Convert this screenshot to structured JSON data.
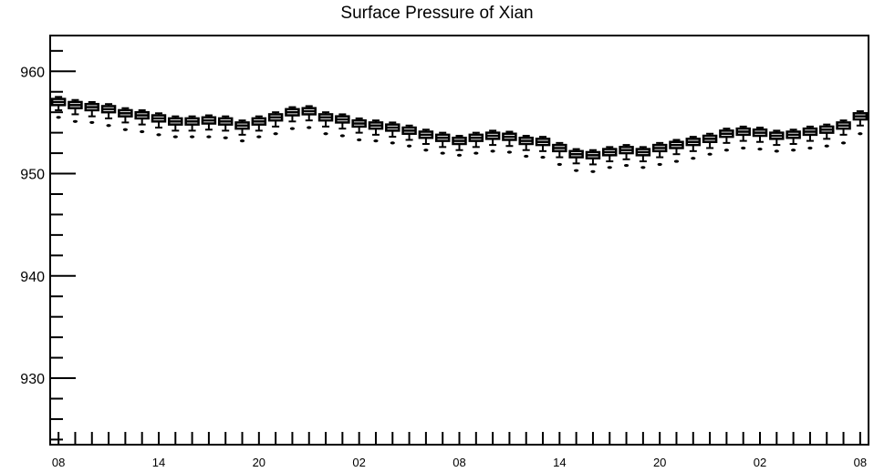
{
  "chart_data": {
    "type": "boxplot",
    "title": "Surface Pressure of Xian",
    "xlabel": "",
    "ylabel": "",
    "ylim": [
      923.5,
      963.5
    ],
    "xlim": [
      -0.5,
      48.5
    ],
    "y_ticks": [
      930,
      940,
      950,
      960
    ],
    "y_tick_labels": [
      "930",
      "940",
      "950",
      "960"
    ],
    "x_ticks": [
      0,
      6,
      12,
      18,
      24,
      30,
      36,
      42,
      48
    ],
    "x_tick_labels": [
      "08",
      "14",
      "20",
      "02",
      "08",
      "14",
      "20",
      "02",
      "08"
    ],
    "grid": false,
    "legend": "none",
    "colors": {
      "stroke": "#000000",
      "background": "#ffffff"
    },
    "boxes": [
      {
        "x": 0,
        "q1": 956.7,
        "median": 957.0,
        "q3": 957.3,
        "low": 956.2,
        "high": 957.5,
        "outlier": 955.5
      },
      {
        "x": 1,
        "q1": 956.4,
        "median": 956.7,
        "q3": 957.0,
        "low": 955.8,
        "high": 957.2,
        "outlier": 955.1
      },
      {
        "x": 2,
        "q1": 956.2,
        "median": 956.5,
        "q3": 956.8,
        "low": 955.6,
        "high": 957.0,
        "outlier": 955.0
      },
      {
        "x": 3,
        "q1": 956.0,
        "median": 956.3,
        "q3": 956.6,
        "low": 955.4,
        "high": 956.8,
        "outlier": 954.7
      },
      {
        "x": 4,
        "q1": 955.6,
        "median": 955.9,
        "q3": 956.2,
        "low": 955.0,
        "high": 956.4,
        "outlier": 954.3
      },
      {
        "x": 5,
        "q1": 955.4,
        "median": 955.7,
        "q3": 956.0,
        "low": 954.8,
        "high": 956.2,
        "outlier": 954.1
      },
      {
        "x": 6,
        "q1": 955.1,
        "median": 955.4,
        "q3": 955.7,
        "low": 954.5,
        "high": 955.9,
        "outlier": 953.8
      },
      {
        "x": 7,
        "q1": 954.8,
        "median": 955.1,
        "q3": 955.4,
        "low": 954.2,
        "high": 955.6,
        "outlier": 953.6
      },
      {
        "x": 8,
        "q1": 954.8,
        "median": 955.1,
        "q3": 955.4,
        "low": 954.2,
        "high": 955.6,
        "outlier": 953.6
      },
      {
        "x": 9,
        "q1": 954.9,
        "median": 955.2,
        "q3": 955.5,
        "low": 954.3,
        "high": 955.7,
        "outlier": 953.6
      },
      {
        "x": 10,
        "q1": 954.8,
        "median": 955.1,
        "q3": 955.4,
        "low": 954.2,
        "high": 955.6,
        "outlier": 953.5
      },
      {
        "x": 11,
        "q1": 954.4,
        "median": 954.7,
        "q3": 955.0,
        "low": 953.8,
        "high": 955.2,
        "outlier": 953.2
      },
      {
        "x": 12,
        "q1": 954.8,
        "median": 955.1,
        "q3": 955.4,
        "low": 954.2,
        "high": 955.6,
        "outlier": 953.6
      },
      {
        "x": 13,
        "q1": 955.2,
        "median": 955.5,
        "q3": 955.8,
        "low": 954.6,
        "high": 956.0,
        "outlier": 953.9
      },
      {
        "x": 14,
        "q1": 955.7,
        "median": 956.0,
        "q3": 956.3,
        "low": 955.1,
        "high": 956.5,
        "outlier": 954.4
      },
      {
        "x": 15,
        "q1": 955.8,
        "median": 956.1,
        "q3": 956.4,
        "low": 955.2,
        "high": 956.6,
        "outlier": 954.5
      },
      {
        "x": 16,
        "q1": 955.2,
        "median": 955.5,
        "q3": 955.8,
        "low": 954.6,
        "high": 956.0,
        "outlier": 953.9
      },
      {
        "x": 17,
        "q1": 955.0,
        "median": 955.3,
        "q3": 955.6,
        "low": 954.4,
        "high": 955.8,
        "outlier": 953.7
      },
      {
        "x": 18,
        "q1": 954.6,
        "median": 954.9,
        "q3": 955.2,
        "low": 954.0,
        "high": 955.4,
        "outlier": 953.3
      },
      {
        "x": 19,
        "q1": 954.4,
        "median": 954.7,
        "q3": 955.0,
        "low": 953.8,
        "high": 955.2,
        "outlier": 953.2
      },
      {
        "x": 20,
        "q1": 954.2,
        "median": 954.5,
        "q3": 954.8,
        "low": 953.6,
        "high": 955.0,
        "outlier": 953.0
      },
      {
        "x": 21,
        "q1": 953.9,
        "median": 954.2,
        "q3": 954.5,
        "low": 953.3,
        "high": 954.7,
        "outlier": 952.7
      },
      {
        "x": 22,
        "q1": 953.5,
        "median": 953.8,
        "q3": 954.1,
        "low": 952.9,
        "high": 954.3,
        "outlier": 952.3
      },
      {
        "x": 23,
        "q1": 953.2,
        "median": 953.5,
        "q3": 953.8,
        "low": 952.6,
        "high": 954.0,
        "outlier": 952.0
      },
      {
        "x": 24,
        "q1": 952.9,
        "median": 953.2,
        "q3": 953.5,
        "low": 952.3,
        "high": 953.7,
        "outlier": 951.8
      },
      {
        "x": 25,
        "q1": 953.2,
        "median": 953.5,
        "q3": 953.8,
        "low": 952.6,
        "high": 954.0,
        "outlier": 952.0
      },
      {
        "x": 26,
        "q1": 953.4,
        "median": 953.7,
        "q3": 954.0,
        "low": 952.8,
        "high": 954.2,
        "outlier": 952.2
      },
      {
        "x": 27,
        "q1": 953.3,
        "median": 953.6,
        "q3": 953.9,
        "low": 952.7,
        "high": 954.1,
        "outlier": 952.1
      },
      {
        "x": 28,
        "q1": 952.9,
        "median": 953.2,
        "q3": 953.5,
        "low": 952.3,
        "high": 953.7,
        "outlier": 951.7
      },
      {
        "x": 29,
        "q1": 952.8,
        "median": 953.1,
        "q3": 953.4,
        "low": 952.2,
        "high": 953.6,
        "outlier": 951.6
      },
      {
        "x": 30,
        "q1": 952.2,
        "median": 952.5,
        "q3": 952.8,
        "low": 951.6,
        "high": 953.0,
        "outlier": 950.9
      },
      {
        "x": 31,
        "q1": 951.6,
        "median": 951.9,
        "q3": 952.2,
        "low": 951.0,
        "high": 952.4,
        "outlier": 950.3
      },
      {
        "x": 32,
        "q1": 951.5,
        "median": 951.8,
        "q3": 952.1,
        "low": 950.9,
        "high": 952.3,
        "outlier": 950.2
      },
      {
        "x": 33,
        "q1": 951.8,
        "median": 952.1,
        "q3": 952.4,
        "low": 951.2,
        "high": 952.6,
        "outlier": 950.6
      },
      {
        "x": 34,
        "q1": 952.0,
        "median": 952.3,
        "q3": 952.6,
        "low": 951.4,
        "high": 952.8,
        "outlier": 950.8
      },
      {
        "x": 35,
        "q1": 951.8,
        "median": 952.1,
        "q3": 952.4,
        "low": 951.2,
        "high": 952.6,
        "outlier": 950.6
      },
      {
        "x": 36,
        "q1": 952.2,
        "median": 952.5,
        "q3": 952.8,
        "low": 951.6,
        "high": 953.0,
        "outlier": 950.9
      },
      {
        "x": 37,
        "q1": 952.5,
        "median": 952.8,
        "q3": 953.1,
        "low": 951.9,
        "high": 953.3,
        "outlier": 951.2
      },
      {
        "x": 38,
        "q1": 952.8,
        "median": 953.1,
        "q3": 953.4,
        "low": 952.2,
        "high": 953.6,
        "outlier": 951.5
      },
      {
        "x": 39,
        "q1": 953.1,
        "median": 953.4,
        "q3": 953.7,
        "low": 952.5,
        "high": 953.9,
        "outlier": 951.9
      },
      {
        "x": 40,
        "q1": 953.6,
        "median": 953.9,
        "q3": 954.2,
        "low": 953.0,
        "high": 954.4,
        "outlier": 952.3
      },
      {
        "x": 41,
        "q1": 953.8,
        "median": 954.1,
        "q3": 954.4,
        "low": 953.2,
        "high": 954.6,
        "outlier": 952.5
      },
      {
        "x": 42,
        "q1": 953.7,
        "median": 954.0,
        "q3": 954.3,
        "low": 953.1,
        "high": 954.5,
        "outlier": 952.4
      },
      {
        "x": 43,
        "q1": 953.4,
        "median": 953.7,
        "q3": 954.0,
        "low": 952.8,
        "high": 954.2,
        "outlier": 952.2
      },
      {
        "x": 44,
        "q1": 953.5,
        "median": 953.8,
        "q3": 954.1,
        "low": 952.9,
        "high": 954.3,
        "outlier": 952.3
      },
      {
        "x": 45,
        "q1": 953.8,
        "median": 954.1,
        "q3": 954.4,
        "low": 953.2,
        "high": 954.6,
        "outlier": 952.5
      },
      {
        "x": 46,
        "q1": 954.0,
        "median": 954.3,
        "q3": 954.6,
        "low": 953.4,
        "high": 954.8,
        "outlier": 952.7
      },
      {
        "x": 47,
        "q1": 954.4,
        "median": 954.7,
        "q3": 955.0,
        "low": 953.8,
        "high": 955.2,
        "outlier": 953.0
      },
      {
        "x": 48,
        "q1": 955.3,
        "median": 955.6,
        "q3": 955.9,
        "low": 954.7,
        "high": 956.1,
        "outlier": 953.9
      }
    ]
  }
}
